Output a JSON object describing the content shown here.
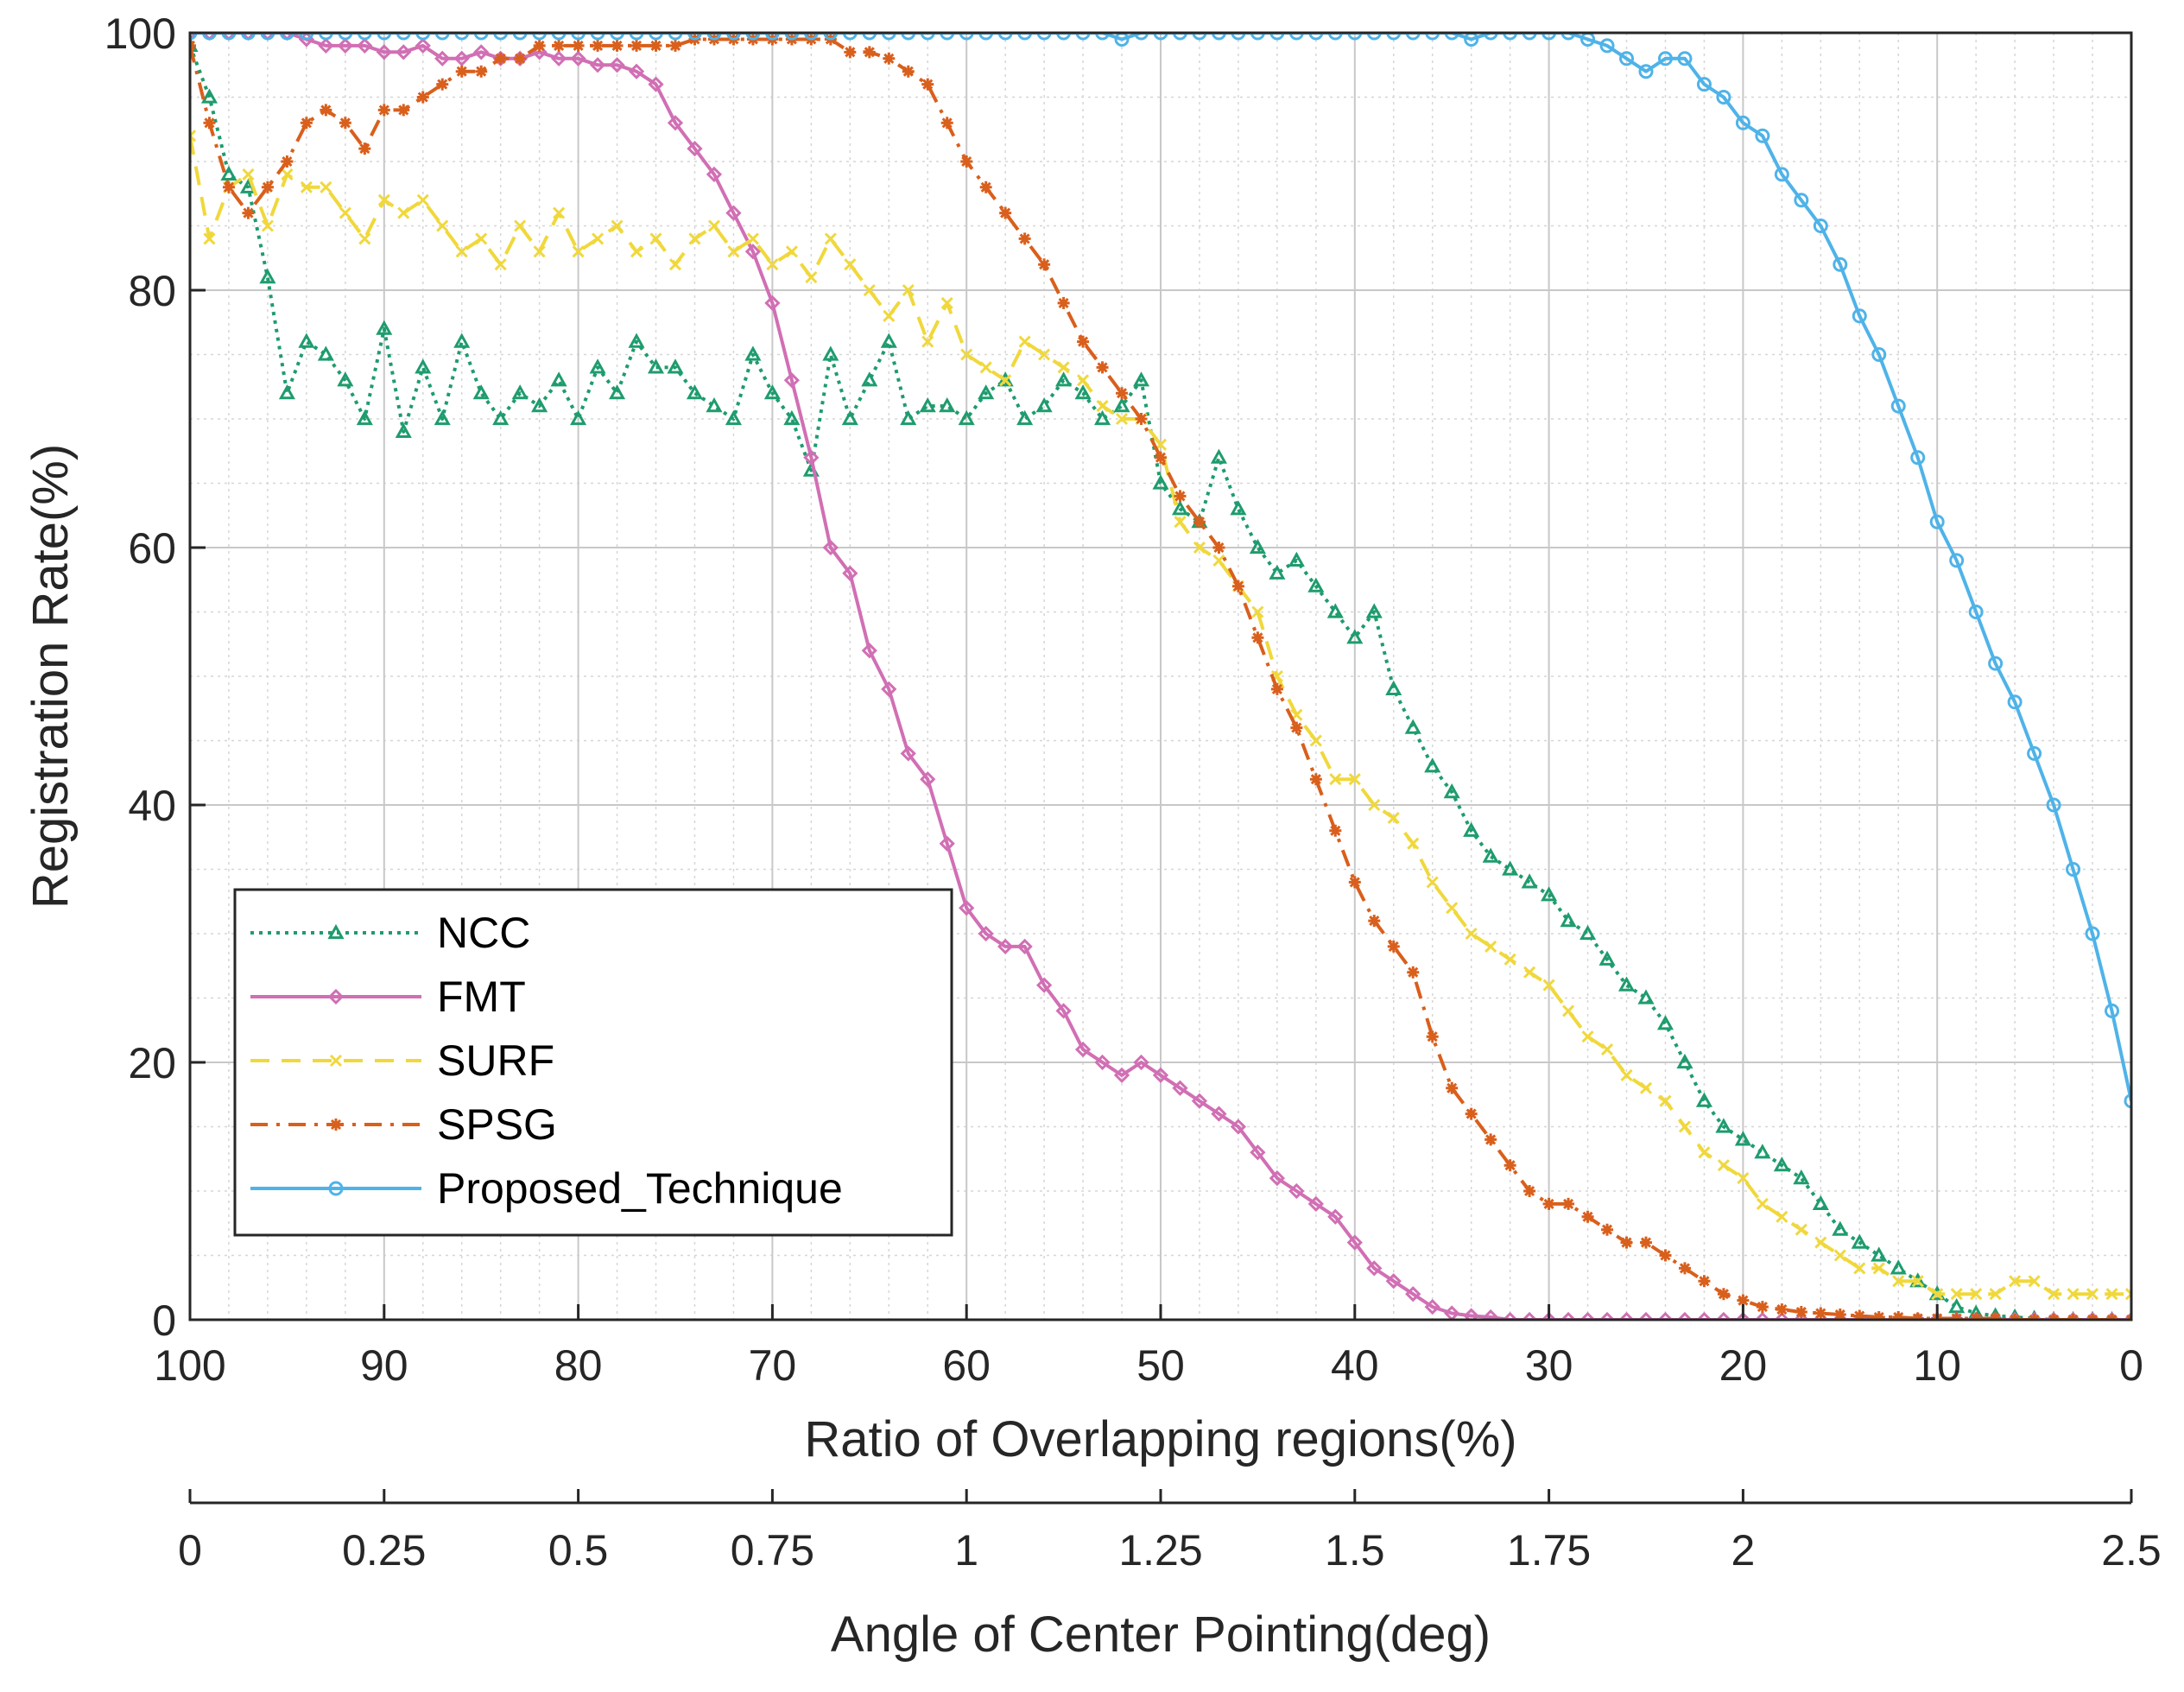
{
  "chart_data": {
    "type": "line",
    "title": "",
    "ylabel": "Registration Rate(%)",
    "xlabel": "Ratio of Overlapping regions(%)",
    "xlim": [
      100,
      0
    ],
    "ylim": [
      0,
      100
    ],
    "x_ticks": [
      100,
      90,
      80,
      70,
      60,
      50,
      40,
      30,
      20,
      10,
      0
    ],
    "y_ticks": [
      0,
      20,
      40,
      60,
      80,
      100
    ],
    "x_tick_labels": [
      "100",
      "90",
      "80",
      "70",
      "60",
      "50",
      "40",
      "30",
      "20",
      "10",
      "0"
    ],
    "y_tick_labels": [
      "0",
      "20",
      "40",
      "60",
      "80",
      "100"
    ],
    "secondary_x_axis": {
      "label": "Angle of Center Pointing(deg)",
      "range": [
        0,
        2.5
      ],
      "ticks": [
        0,
        0.25,
        0.5,
        0.75,
        1,
        1.25,
        1.5,
        1.75,
        2,
        2.5
      ],
      "tick_labels": [
        "0",
        "0.25",
        "0.5",
        "0.75",
        "1",
        "1.25",
        "1.5",
        "1.75",
        "2",
        "2.5"
      ]
    },
    "grid": true,
    "legend_position": "lower-left",
    "series": [
      {
        "name": "NCC",
        "color": "#1e9c6e",
        "style": "dotted",
        "marker": "triangle",
        "x": [
          100,
          99,
          98,
          97,
          96,
          95,
          94,
          93,
          92,
          91,
          90,
          89,
          88,
          87,
          86,
          85,
          84,
          83,
          82,
          81,
          80,
          79,
          78,
          77,
          76,
          75,
          74,
          73,
          72,
          71,
          70,
          69,
          68,
          67,
          66,
          65,
          64,
          63,
          62,
          61,
          60,
          59,
          58,
          57,
          56,
          55,
          54,
          53,
          52,
          51,
          50,
          49,
          48,
          47,
          46,
          45,
          44,
          43,
          42,
          41,
          40,
          39,
          38,
          37,
          36,
          35,
          34,
          33,
          32,
          31,
          30,
          29,
          28,
          27,
          26,
          25,
          24,
          23,
          22,
          21,
          20,
          19,
          18,
          17,
          16,
          15,
          14,
          13,
          12,
          11,
          10,
          9,
          8,
          7,
          6,
          5,
          4,
          3,
          2,
          1,
          0
        ],
        "y": [
          99,
          95,
          89,
          88,
          81,
          72,
          76,
          75,
          73,
          70,
          77,
          69,
          74,
          70,
          76,
          72,
          70,
          72,
          71,
          73,
          70,
          74,
          72,
          76,
          74,
          74,
          72,
          71,
          70,
          75,
          72,
          70,
          66,
          75,
          70,
          73,
          76,
          70,
          71,
          71,
          70,
          72,
          73,
          70,
          71,
          73,
          72,
          70,
          71,
          73,
          65,
          63,
          62,
          67,
          63,
          60,
          58,
          59,
          57,
          55,
          53,
          55,
          49,
          46,
          43,
          41,
          38,
          36,
          35,
          34,
          33,
          31,
          30,
          28,
          26,
          25,
          23,
          20,
          17,
          15,
          14,
          13,
          12,
          11,
          9,
          7,
          6,
          5,
          4,
          3,
          2,
          1,
          0.5,
          0.3,
          0.2,
          0.1,
          0,
          0,
          0,
          0,
          0
        ]
      },
      {
        "name": "FMT",
        "color": "#d16fb4",
        "style": "solid",
        "marker": "diamond",
        "x": [
          100,
          99,
          98,
          97,
          96,
          95,
          94,
          93,
          92,
          91,
          90,
          89,
          88,
          87,
          86,
          85,
          84,
          83,
          82,
          81,
          80,
          79,
          78,
          77,
          76,
          75,
          74,
          73,
          72,
          71,
          70,
          69,
          68,
          67,
          66,
          65,
          64,
          63,
          62,
          61,
          60,
          59,
          58,
          57,
          56,
          55,
          54,
          53,
          52,
          51,
          50,
          49,
          48,
          47,
          46,
          45,
          44,
          43,
          42,
          41,
          40,
          39,
          38,
          37,
          36,
          35,
          34,
          33,
          32,
          31,
          30,
          29,
          28,
          27,
          26,
          25,
          24,
          23,
          22,
          21,
          20,
          19,
          18,
          17,
          16,
          15,
          14,
          13,
          12,
          11,
          10,
          9,
          8,
          7,
          6,
          5,
          4,
          3,
          2,
          1,
          0
        ],
        "y": [
          100,
          100,
          100,
          100,
          100,
          100,
          99.5,
          99,
          99,
          99,
          98.5,
          98.5,
          99,
          98,
          98,
          98.5,
          98,
          98,
          98.5,
          98,
          98,
          97.5,
          97.5,
          97,
          96,
          93,
          91,
          89,
          86,
          83,
          79,
          73,
          67,
          60,
          58,
          52,
          49,
          44,
          42,
          37,
          32,
          30,
          29,
          29,
          26,
          24,
          21,
          20,
          19,
          20,
          19,
          18,
          17,
          16,
          15,
          13,
          11,
          10,
          9,
          8,
          6,
          4,
          3,
          2,
          1,
          0.5,
          0.3,
          0.2,
          0,
          0,
          0,
          0,
          0,
          0,
          0,
          0,
          0,
          0,
          0,
          0,
          0,
          0,
          0,
          0,
          0,
          0,
          0,
          0,
          0,
          0,
          0,
          0,
          0,
          0,
          0,
          0,
          0,
          0,
          0,
          0,
          0
        ]
      },
      {
        "name": "SURF",
        "color": "#f0d83c",
        "style": "dashed",
        "marker": "x",
        "x": [
          100,
          99,
          98,
          97,
          96,
          95,
          94,
          93,
          92,
          91,
          90,
          89,
          88,
          87,
          86,
          85,
          84,
          83,
          82,
          81,
          80,
          79,
          78,
          77,
          76,
          75,
          74,
          73,
          72,
          71,
          70,
          69,
          68,
          67,
          66,
          65,
          64,
          63,
          62,
          61,
          60,
          59,
          58,
          57,
          56,
          55,
          54,
          53,
          52,
          51,
          50,
          49,
          48,
          47,
          46,
          45,
          44,
          43,
          42,
          41,
          40,
          39,
          38,
          37,
          36,
          35,
          34,
          33,
          32,
          31,
          30,
          29,
          28,
          27,
          26,
          25,
          24,
          23,
          22,
          21,
          20,
          19,
          18,
          17,
          16,
          15,
          14,
          13,
          12,
          11,
          10,
          9,
          8,
          7,
          6,
          5,
          4,
          3,
          2,
          1,
          0
        ],
        "y": [
          92,
          84,
          88,
          89,
          85,
          89,
          88,
          88,
          86,
          84,
          87,
          86,
          87,
          85,
          83,
          84,
          82,
          85,
          83,
          86,
          83,
          84,
          85,
          83,
          84,
          82,
          84,
          85,
          83,
          84,
          82,
          83,
          81,
          84,
          82,
          80,
          78,
          80,
          76,
          79,
          75,
          74,
          73,
          76,
          75,
          74,
          73,
          71,
          70,
          70,
          68,
          62,
          60,
          59,
          57,
          55,
          50,
          47,
          45,
          42,
          42,
          40,
          39,
          37,
          34,
          32,
          30,
          29,
          28,
          27,
          26,
          24,
          22,
          21,
          19,
          18,
          17,
          15,
          13,
          12,
          11,
          9,
          8,
          7,
          6,
          5,
          4,
          4,
          3,
          3,
          2,
          2,
          2,
          2,
          3,
          3,
          2,
          2,
          2,
          2,
          2
        ]
      },
      {
        "name": "SPSG",
        "color": "#d95f1c",
        "style": "dashdot",
        "marker": "star",
        "x": [
          100,
          99,
          98,
          97,
          96,
          95,
          94,
          93,
          92,
          91,
          90,
          89,
          88,
          87,
          86,
          85,
          84,
          83,
          82,
          81,
          80,
          79,
          78,
          77,
          76,
          75,
          74,
          73,
          72,
          71,
          70,
          69,
          68,
          67,
          66,
          65,
          64,
          63,
          62,
          61,
          60,
          59,
          58,
          57,
          56,
          55,
          54,
          53,
          52,
          51,
          50,
          49,
          48,
          47,
          46,
          45,
          44,
          43,
          42,
          41,
          40,
          39,
          38,
          37,
          36,
          35,
          34,
          33,
          32,
          31,
          30,
          29,
          28,
          27,
          26,
          25,
          24,
          23,
          22,
          21,
          20,
          19,
          18,
          17,
          16,
          15,
          14,
          13,
          12,
          11,
          10,
          9,
          8,
          7,
          6,
          5,
          4,
          3,
          2,
          1,
          0
        ],
        "y": [
          99,
          93,
          88,
          86,
          88,
          90,
          93,
          94,
          93,
          91,
          94,
          94,
          95,
          96,
          97,
          97,
          98,
          98,
          99,
          99,
          99,
          99,
          99,
          99,
          99,
          99,
          99.5,
          99.5,
          99.5,
          99.5,
          99.5,
          99.5,
          99.5,
          99.5,
          98.5,
          98.5,
          98,
          97,
          96,
          93,
          90,
          88,
          86,
          84,
          82,
          79,
          76,
          74,
          72,
          70,
          67,
          64,
          62,
          60,
          57,
          53,
          49,
          46,
          42,
          38,
          34,
          31,
          29,
          27,
          22,
          18,
          16,
          14,
          12,
          10,
          9,
          9,
          8,
          7,
          6,
          6,
          5,
          4,
          3,
          2,
          1.5,
          1,
          0.8,
          0.6,
          0.5,
          0.4,
          0.3,
          0.2,
          0.2,
          0.1,
          0.1,
          0.1,
          0.1,
          0.1,
          0,
          0,
          0,
          0,
          0,
          0,
          0
        ]
      },
      {
        "name": "Proposed_Technique",
        "color": "#4fb3e8",
        "style": "solid",
        "marker": "circle",
        "x": [
          100,
          99,
          98,
          97,
          96,
          95,
          94,
          93,
          92,
          91,
          90,
          89,
          88,
          87,
          86,
          85,
          84,
          83,
          82,
          81,
          80,
          79,
          78,
          77,
          76,
          75,
          74,
          73,
          72,
          71,
          70,
          69,
          68,
          67,
          66,
          65,
          64,
          63,
          62,
          61,
          60,
          59,
          58,
          57,
          56,
          55,
          54,
          53,
          52,
          51,
          50,
          49,
          48,
          47,
          46,
          45,
          44,
          43,
          42,
          41,
          40,
          39,
          38,
          37,
          36,
          35,
          34,
          33,
          32,
          31,
          30,
          29,
          28,
          27,
          26,
          25,
          24,
          23,
          22,
          21,
          20,
          19,
          18,
          17,
          16,
          15,
          14,
          13,
          12,
          11,
          10,
          9,
          8,
          7,
          6,
          5,
          4,
          3,
          2,
          1,
          0
        ],
        "y": [
          100,
          100,
          100,
          100,
          100,
          100,
          100,
          100,
          100,
          100,
          100,
          100,
          100,
          100,
          100,
          100,
          100,
          100,
          100,
          100,
          100,
          100,
          100,
          100,
          100,
          100,
          100,
          100,
          100,
          100,
          100,
          100,
          100,
          100,
          100,
          100,
          100,
          100,
          100,
          100,
          100,
          100,
          100,
          100,
          100,
          100,
          100,
          100,
          99.5,
          100,
          100,
          100,
          100,
          100,
          100,
          100,
          100,
          100,
          100,
          100,
          100,
          100,
          100,
          100,
          100,
          100,
          99.5,
          100,
          100,
          100,
          100,
          100,
          99.5,
          99,
          98,
          97,
          98,
          98,
          96,
          95,
          93,
          92,
          89,
          87,
          85,
          82,
          78,
          75,
          71,
          67,
          62,
          59,
          55,
          51,
          48,
          44,
          40,
          35,
          30,
          24,
          17
        ]
      }
    ]
  }
}
